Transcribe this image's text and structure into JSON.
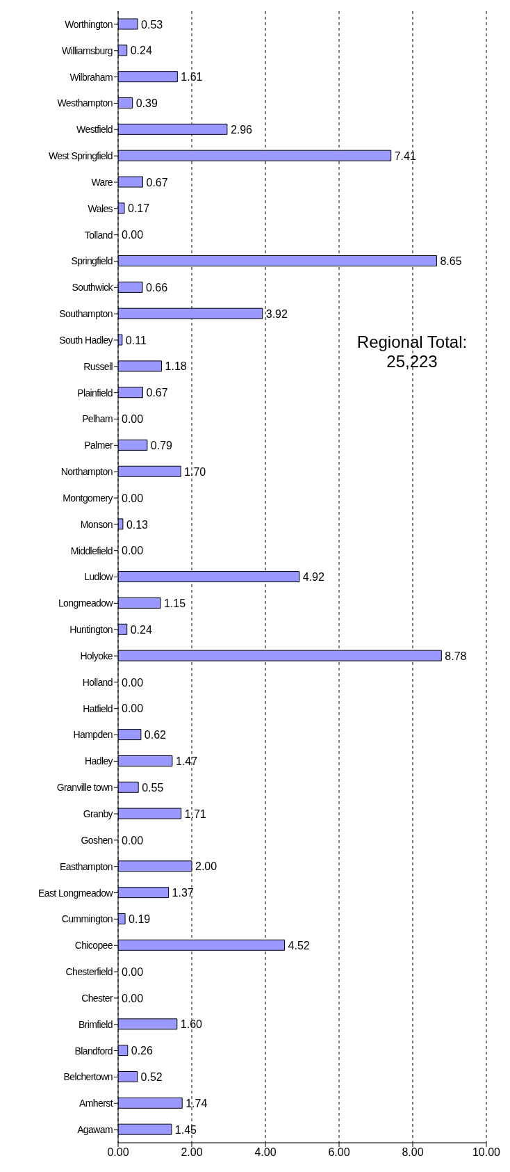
{
  "chart_data": {
    "type": "bar",
    "orientation": "horizontal",
    "categories": [
      "Worthington",
      "Williamsburg",
      "Wilbraham",
      "Westhampton",
      "Westfield",
      "West Springfield",
      "Ware",
      "Wales",
      "Tolland",
      "Springfield",
      "Southwick",
      "Southampton",
      "South Hadley",
      "Russell",
      "Plainfield",
      "Pelham",
      "Palmer",
      "Northampton",
      "Montgomery",
      "Monson",
      "Middlefield",
      "Ludlow",
      "Longmeadow",
      "Huntington",
      "Holyoke",
      "Holland",
      "Hatfield",
      "Hampden",
      "Hadley",
      "Granville town",
      "Granby",
      "Goshen",
      "Easthampton",
      "East Longmeadow",
      "Cummington",
      "Chicopee",
      "Chesterfield",
      "Chester",
      "Brimfield",
      "Blandford",
      "Belchertown",
      "Amherst",
      "Agawam"
    ],
    "values": [
      0.53,
      0.24,
      1.61,
      0.39,
      2.96,
      7.41,
      0.67,
      0.17,
      0,
      8.65,
      0.66,
      3.92,
      0.11,
      1.18,
      0.67,
      0,
      0.79,
      1.7,
      0,
      0.13,
      0,
      4.92,
      1.15,
      0.24,
      8.78,
      0,
      0,
      0.62,
      1.47,
      0.55,
      1.71,
      0,
      2.0,
      1.37,
      0.19,
      4.52,
      0,
      0,
      1.6,
      0.26,
      0.52,
      1.74,
      1.45
    ],
    "value_labels": [
      "0.53",
      "0.24",
      "1.61",
      "0.39",
      "2.96",
      "7.41",
      "0.67",
      "0.17",
      "0.00",
      "8.65",
      "0.66",
      "3.92",
      "0.11",
      "1.18",
      "0.67",
      "0.00",
      "0.79",
      "1.70",
      "0.00",
      "0.13",
      "0.00",
      "4.92",
      "1.15",
      "0.24",
      "8.78",
      "0.00",
      "0.00",
      "0.62",
      "1.47",
      "0.55",
      "1.71",
      "0.00",
      "2.00",
      "1.37",
      "0.19",
      "4.52",
      "0.00",
      "0.00",
      "1.60",
      "0.26",
      "0.52",
      "1.74",
      "1.45"
    ],
    "color": "#9999ff",
    "xlim": [
      0,
      10
    ],
    "xticks": [
      {
        "value": 0,
        "label": "0.00"
      },
      {
        "value": 2,
        "label": "2.00"
      },
      {
        "value": 4,
        "label": "4.00"
      },
      {
        "value": 6,
        "label": "6.00"
      },
      {
        "value": 8,
        "label": "8.00"
      },
      {
        "value": 10,
        "label": "10.00"
      }
    ],
    "grid": "x",
    "annotations": [
      "Regional Total:\n25,223"
    ]
  }
}
